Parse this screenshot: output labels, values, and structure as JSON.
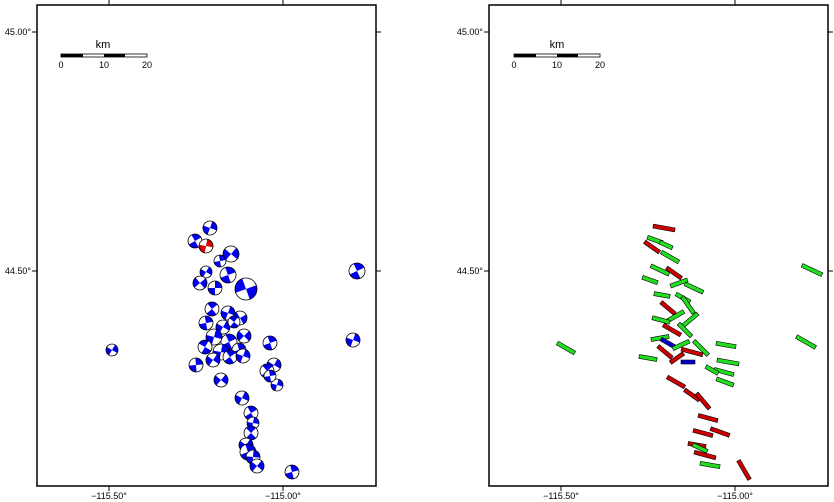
{
  "colors": {
    "mechanism": "#0000ee",
    "mechanism_highlight": "#dd0000",
    "fault_green": "#22dd22",
    "fault_red": "#cc0000",
    "fault_blue": "#0000cc",
    "frame": "#000000"
  },
  "map": {
    "lat_labels": [
      "45.00°",
      "44.50°"
    ],
    "lon_labels": [
      "−115.50°",
      "−115.00°"
    ]
  },
  "scalebar": {
    "unit": "km",
    "ticks": [
      "0",
      "10",
      "20"
    ]
  }
}
